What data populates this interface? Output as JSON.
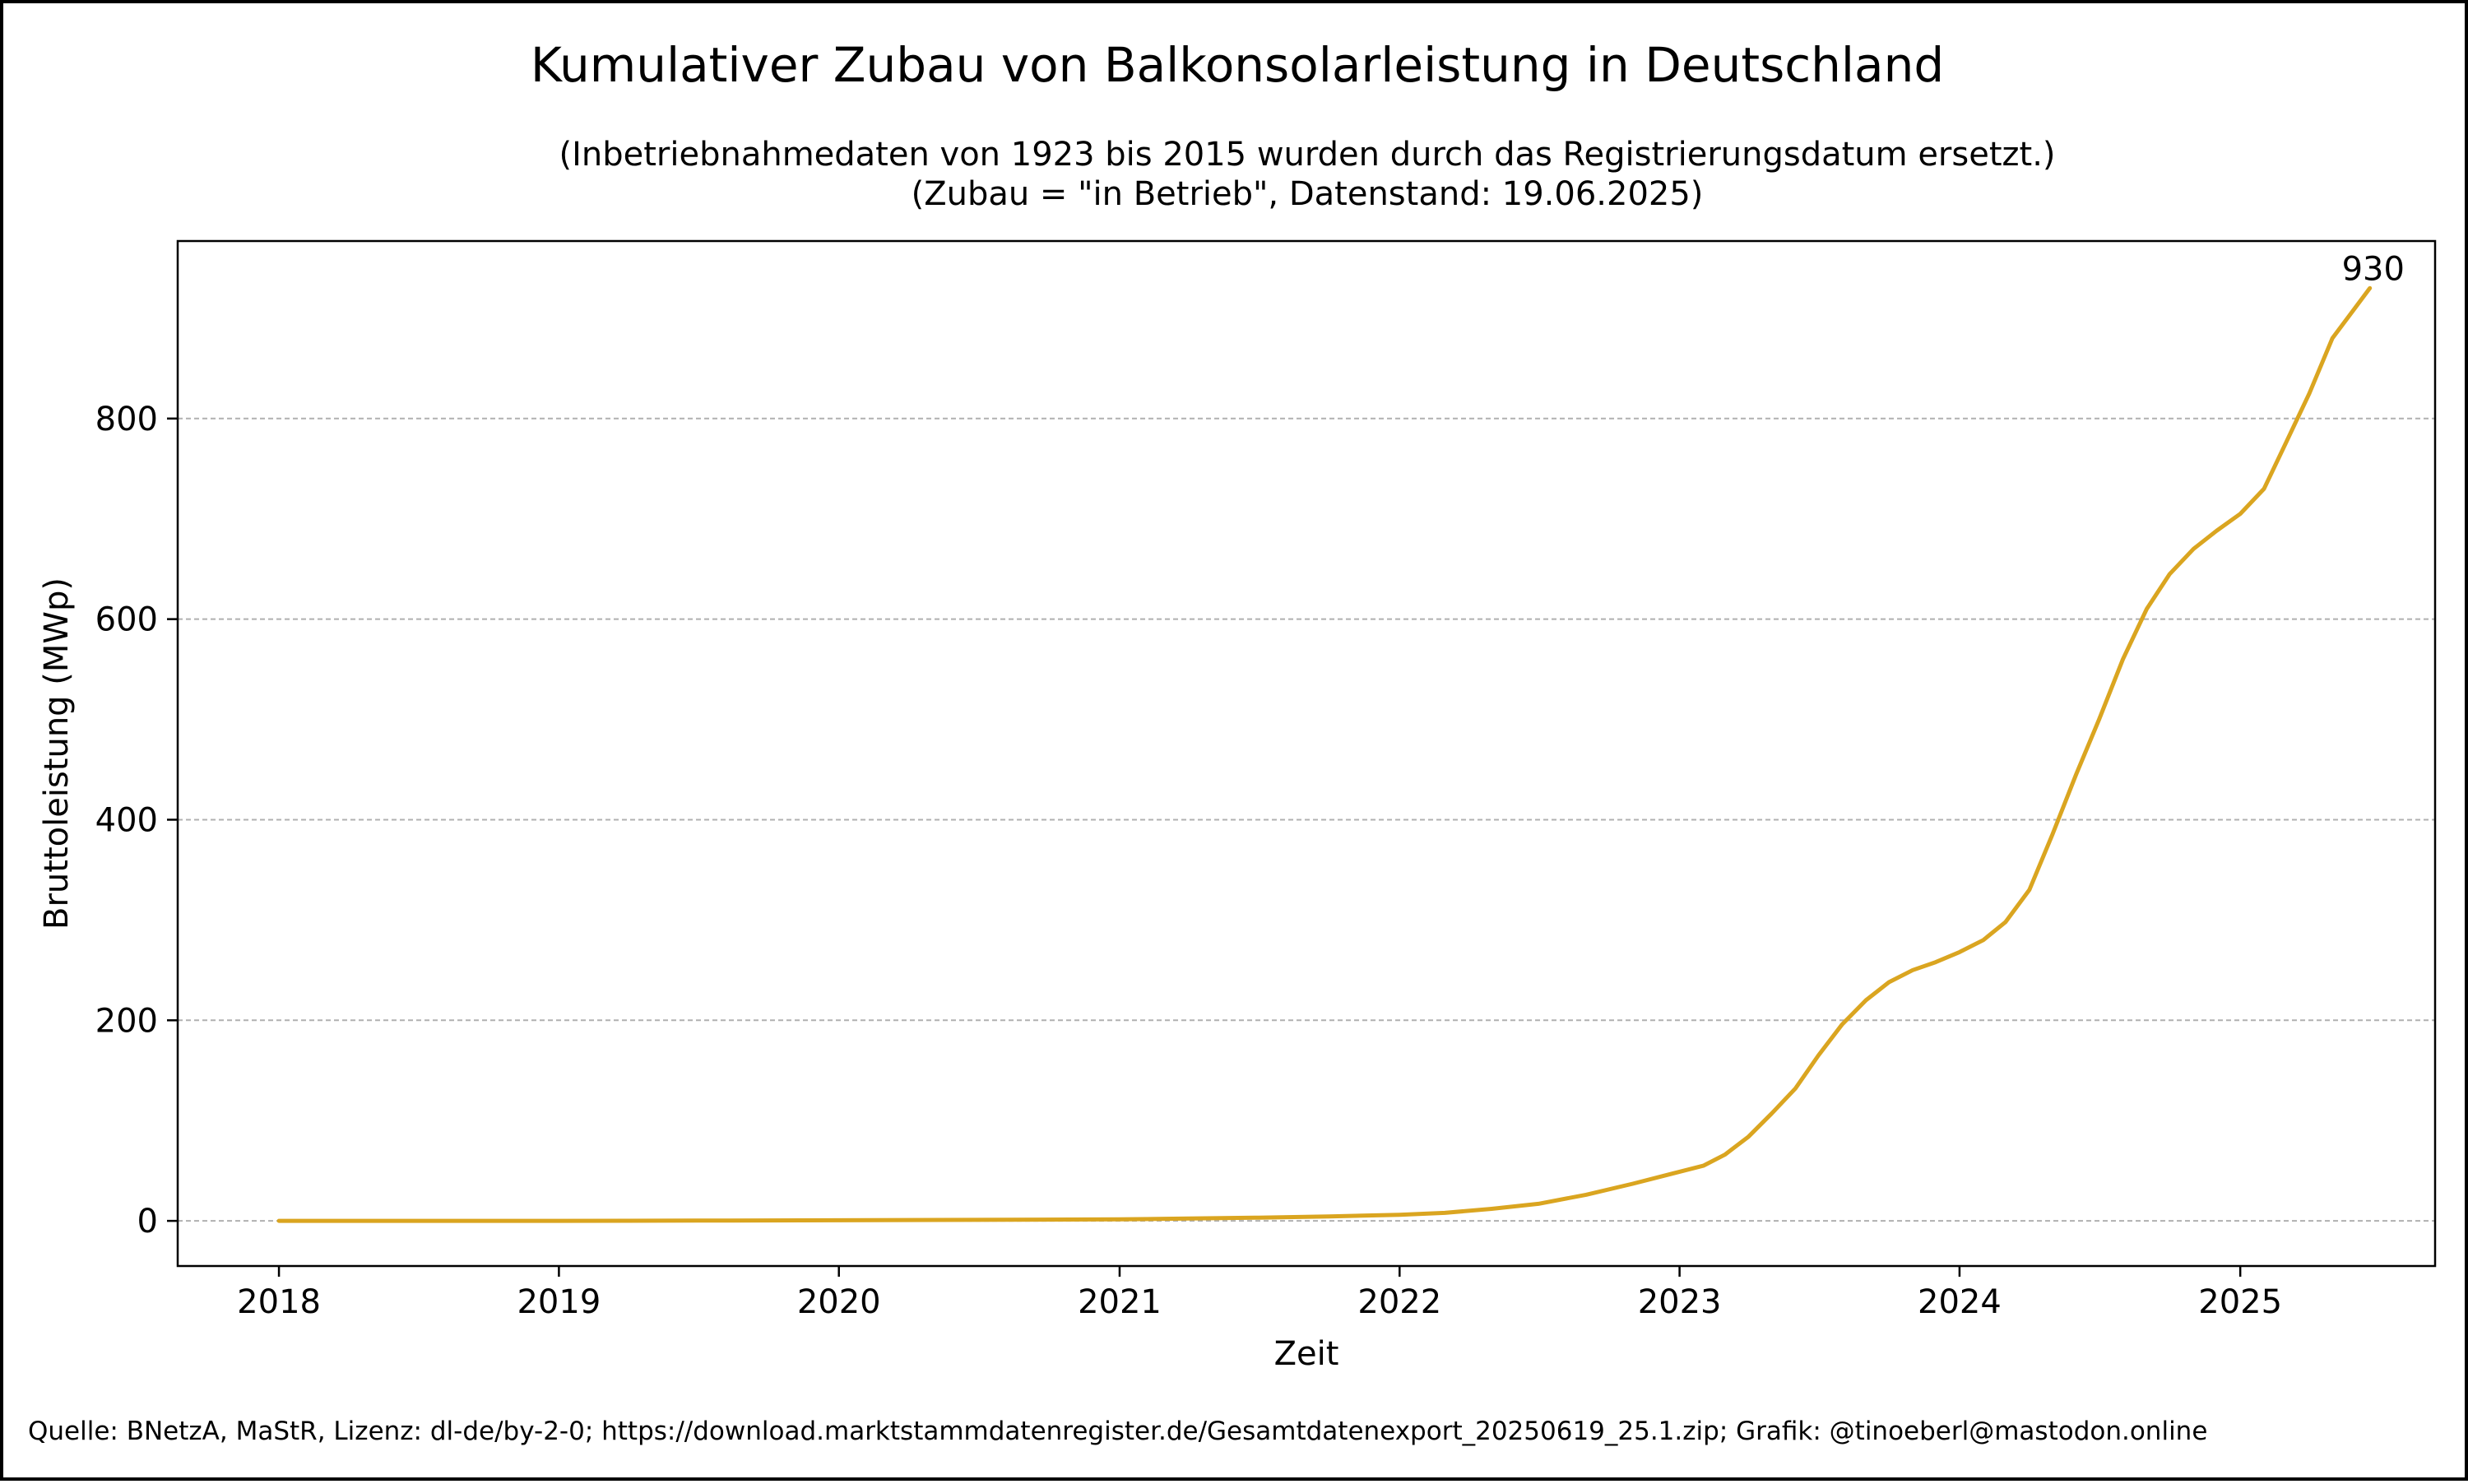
{
  "chart_data": {
    "type": "line",
    "title": "Kumulativer Zubau von Balkonsolarleistung in Deutschland",
    "subtitle": [
      "(Inbetriebnahmedaten von 1923 bis 2015 wurden durch das Registrierungsdatum ersetzt.)",
      "(Zubau = \"in Betrieb\", Datenstand: 19.06.2025)"
    ],
    "xlabel": "Zeit",
    "ylabel": "Bruttoleistung (MWp)",
    "x_ticks": [
      "2018",
      "2019",
      "2020",
      "2021",
      "2022",
      "2023",
      "2024",
      "2025"
    ],
    "y_ticks": [
      0,
      200,
      400,
      600,
      800
    ],
    "xlim": [
      "2017-08-22",
      "2025-09-12"
    ],
    "ylim": [
      -45,
      977
    ],
    "grid": "horizontal-dashed",
    "line_color": "#DAA520",
    "series": [
      {
        "x": [
          "2018-01-01",
          "2018-07-01",
          "2019-01-01",
          "2019-07-01",
          "2020-01-01",
          "2020-07-01",
          "2021-01-01",
          "2021-04-01",
          "2021-07-01",
          "2021-10-01",
          "2022-01-01",
          "2022-03-01",
          "2022-05-01",
          "2022-07-01",
          "2022-09-01",
          "2022-11-01",
          "2023-01-01",
          "2023-02-01",
          "2023-03-01",
          "2023-04-01",
          "2023-05-01",
          "2023-06-01",
          "2023-07-01",
          "2023-08-01",
          "2023-09-01",
          "2023-10-01",
          "2023-11-01",
          "2023-12-01",
          "2024-01-01",
          "2024-02-01",
          "2024-03-01",
          "2024-04-01",
          "2024-05-01",
          "2024-06-01",
          "2024-07-01",
          "2024-08-01",
          "2024-09-01",
          "2024-10-01",
          "2024-11-01",
          "2024-12-01",
          "2025-01-01",
          "2025-02-01",
          "2025-03-01",
          "2025-04-01",
          "2025-05-01",
          "2025-06-19"
        ],
        "values": [
          0,
          0,
          0,
          0.3,
          0.6,
          1,
          1.5,
          2.3,
          3.2,
          4.5,
          6,
          8,
          12,
          17,
          26,
          37,
          49,
          55,
          66,
          84,
          107,
          132,
          165,
          196,
          220,
          238,
          250,
          258,
          268,
          280,
          298,
          330,
          385,
          445,
          500,
          560,
          610,
          645,
          670,
          688,
          705,
          730,
          775,
          825,
          880,
          930
        ]
      }
    ],
    "annotations": [
      {
        "text": "930",
        "x": "2025-06-19",
        "y": 930
      }
    ],
    "source": "Quelle: BNetzA, MaStR, Lizenz: dl-de/by-2-0; https://download.marktstammdatenregister.de/Gesamtdatenexport_20250619_25.1.zip; Grafik: @tinoeberl@mastodon.online"
  }
}
